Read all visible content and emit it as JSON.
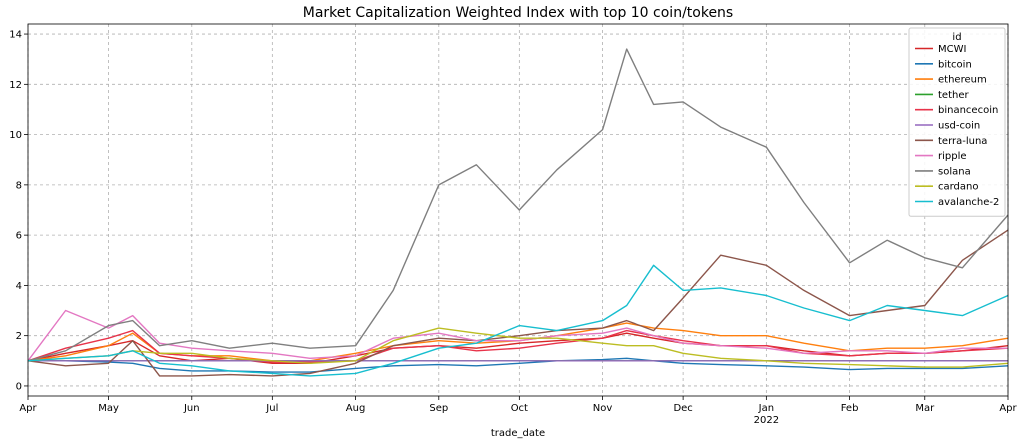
{
  "chart_data": {
    "type": "line",
    "title": "Market Capitalization Weighted Index with top 10 coin/tokens",
    "xlabel": "trade_date",
    "ylabel": "",
    "xlim": [
      "2021-04-01",
      "2022-04-01"
    ],
    "ylim": [
      -0.4,
      14.4
    ],
    "yticks": [
      0,
      2,
      4,
      6,
      8,
      10,
      12,
      14
    ],
    "xticks": [
      {
        "date": "2021-04-01",
        "label": "Apr"
      },
      {
        "date": "2021-05-01",
        "label": "May"
      },
      {
        "date": "2021-06-01",
        "label": "Jun"
      },
      {
        "date": "2021-07-01",
        "label": "Jul"
      },
      {
        "date": "2021-08-01",
        "label": "Aug"
      },
      {
        "date": "2021-09-01",
        "label": "Sep"
      },
      {
        "date": "2021-10-01",
        "label": "Oct"
      },
      {
        "date": "2021-11-01",
        "label": "Nov"
      },
      {
        "date": "2021-12-01",
        "label": "Dec"
      },
      {
        "date": "2022-01-01",
        "label": "Jan"
      },
      {
        "date": "2022-02-01",
        "label": "Feb"
      },
      {
        "date": "2022-03-01",
        "label": "Mar"
      },
      {
        "date": "2022-04-01",
        "label": "Apr"
      }
    ],
    "year_label": "2022",
    "grid": true,
    "legend_title": "id",
    "legend_position": "top-right",
    "x": [
      "2021-04-01",
      "2021-04-15",
      "2021-05-01",
      "2021-05-10",
      "2021-05-20",
      "2021-06-01",
      "2021-06-15",
      "2021-07-01",
      "2021-07-15",
      "2021-08-01",
      "2021-08-15",
      "2021-09-01",
      "2021-09-15",
      "2021-10-01",
      "2021-10-15",
      "2021-11-01",
      "2021-11-10",
      "2021-11-20",
      "2021-12-01",
      "2021-12-15",
      "2022-01-01",
      "2022-01-15",
      "2022-02-01",
      "2022-02-15",
      "2022-03-01",
      "2022-03-15",
      "2022-04-01"
    ],
    "series": [
      {
        "name": "MCWI",
        "color": "#d62728",
        "values": [
          1.0,
          1.3,
          1.6,
          1.8,
          1.2,
          1.0,
          1.1,
          0.9,
          0.9,
          1.2,
          1.5,
          1.6,
          1.5,
          1.7,
          1.8,
          1.9,
          2.1,
          1.9,
          1.7,
          1.6,
          1.6,
          1.4,
          1.2,
          1.3,
          1.3,
          1.4,
          1.6
        ]
      },
      {
        "name": "bitcoin",
        "color": "#1f77b4",
        "values": [
          1.0,
          1.0,
          0.95,
          0.9,
          0.7,
          0.6,
          0.6,
          0.55,
          0.55,
          0.7,
          0.8,
          0.85,
          0.8,
          0.9,
          1.0,
          1.05,
          1.1,
          1.0,
          0.9,
          0.85,
          0.8,
          0.75,
          0.65,
          0.7,
          0.7,
          0.7,
          0.8
        ]
      },
      {
        "name": "ethereum",
        "color": "#ff7f0e",
        "values": [
          1.0,
          1.2,
          1.6,
          2.1,
          1.3,
          1.2,
          1.2,
          1.0,
          1.0,
          1.3,
          1.6,
          1.8,
          1.7,
          1.8,
          2.0,
          2.3,
          2.5,
          2.3,
          2.2,
          2.0,
          2.0,
          1.7,
          1.4,
          1.5,
          1.5,
          1.6,
          1.9
        ]
      },
      {
        "name": "tether",
        "color": "#2ca02c",
        "values": [
          1.0,
          1.0,
          1.0,
          1.0,
          1.0,
          1.0,
          1.0,
          1.0,
          1.0,
          1.0,
          1.0,
          1.0,
          1.0,
          1.0,
          1.0,
          1.0,
          1.0,
          1.0,
          1.0,
          1.0,
          1.0,
          1.0,
          1.0,
          1.0,
          1.0,
          1.0,
          1.0
        ]
      },
      {
        "name": "binancecoin",
        "color": "#e8334a",
        "values": [
          1.0,
          1.5,
          1.9,
          2.2,
          1.3,
          1.2,
          1.1,
          0.95,
          0.95,
          1.0,
          1.5,
          1.6,
          1.4,
          1.5,
          1.7,
          1.9,
          2.2,
          2.0,
          1.8,
          1.6,
          1.6,
          1.3,
          1.2,
          1.3,
          1.3,
          1.4,
          1.5
        ]
      },
      {
        "name": "usd-coin",
        "color": "#9467bd",
        "values": [
          1.0,
          1.0,
          1.0,
          1.0,
          1.0,
          1.0,
          1.0,
          1.0,
          1.0,
          1.0,
          1.0,
          1.0,
          1.0,
          1.0,
          1.0,
          1.0,
          1.0,
          1.0,
          1.0,
          1.0,
          1.0,
          1.0,
          1.0,
          1.0,
          1.0,
          1.0,
          1.0
        ]
      },
      {
        "name": "terra-luna",
        "color": "#8c564b",
        "values": [
          1.0,
          0.8,
          0.9,
          1.8,
          0.4,
          0.4,
          0.45,
          0.4,
          0.5,
          0.9,
          1.6,
          1.9,
          1.8,
          2.0,
          2.2,
          2.3,
          2.6,
          2.2,
          3.5,
          5.2,
          4.8,
          3.8,
          2.8,
          3.0,
          3.2,
          5.0,
          6.2
        ]
      },
      {
        "name": "ripple",
        "color": "#e377c2",
        "values": [
          1.0,
          3.0,
          2.3,
          2.8,
          1.7,
          1.5,
          1.4,
          1.3,
          1.1,
          1.2,
          1.9,
          2.1,
          1.8,
          1.8,
          2.0,
          2.1,
          2.3,
          2.0,
          1.7,
          1.6,
          1.5,
          1.3,
          1.4,
          1.4,
          1.3,
          1.5,
          1.5
        ]
      },
      {
        "name": "solana",
        "color": "#7f7f7f",
        "values": [
          1.0,
          1.4,
          2.4,
          2.6,
          1.6,
          1.8,
          1.5,
          1.7,
          1.5,
          1.6,
          3.8,
          8.0,
          8.8,
          7.0,
          8.6,
          10.2,
          13.4,
          11.2,
          11.3,
          10.3,
          9.5,
          7.3,
          4.9,
          5.8,
          5.1,
          4.7,
          6.8
        ]
      },
      {
        "name": "cardano",
        "color": "#bcbd22",
        "values": [
          1.0,
          1.1,
          1.2,
          1.4,
          1.3,
          1.3,
          1.1,
          1.0,
          0.9,
          1.0,
          1.8,
          2.3,
          2.1,
          1.9,
          1.9,
          1.7,
          1.6,
          1.6,
          1.3,
          1.1,
          1.0,
          0.9,
          0.85,
          0.8,
          0.75,
          0.75,
          0.9
        ]
      },
      {
        "name": "avalanche-2",
        "color": "#17becf",
        "values": [
          1.0,
          1.1,
          1.2,
          1.4,
          0.9,
          0.8,
          0.6,
          0.5,
          0.4,
          0.5,
          0.9,
          1.5,
          1.7,
          2.4,
          2.2,
          2.6,
          3.2,
          4.8,
          3.8,
          3.9,
          3.6,
          3.1,
          2.6,
          3.2,
          3.0,
          2.8,
          3.6
        ]
      }
    ]
  }
}
